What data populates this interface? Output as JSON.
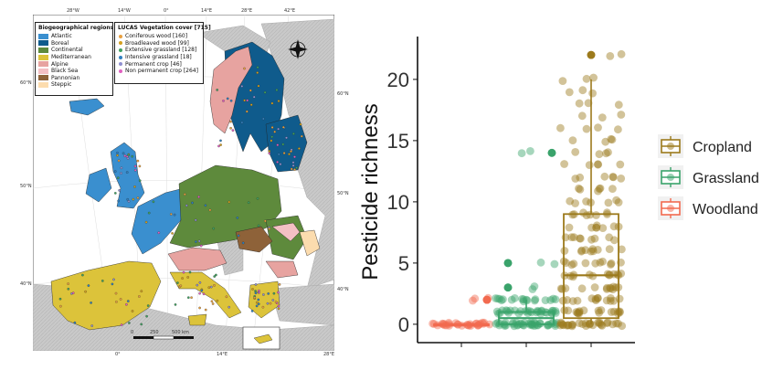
{
  "map": {
    "top_ticks": [
      "28°W",
      "14°W",
      "0°",
      "14°E",
      "28°E",
      "42°E"
    ],
    "bottom_ticks": [
      "0°",
      "14°E",
      "28°E"
    ],
    "left_ticks": [
      "60°N",
      "50°N",
      "40°N"
    ],
    "right_ticks": [
      "60°N",
      "50°N",
      "40°N"
    ],
    "biogeo_legend": {
      "title": "Biogeographical regions",
      "items": [
        {
          "label": "Atlantic",
          "color": "#3a8fcf"
        },
        {
          "label": "Boreal",
          "color": "#0f5b8c"
        },
        {
          "label": "Continental",
          "color": "#5e8a3c"
        },
        {
          "label": "Mediterranean",
          "color": "#dcc33a"
        },
        {
          "label": "Alpine",
          "color": "#e7a3a0"
        },
        {
          "label": "Black Sea",
          "color": "#f4c0c4"
        },
        {
          "label": "Pannonian",
          "color": "#8e6239"
        },
        {
          "label": "Steppic",
          "color": "#fcdcae"
        }
      ]
    },
    "vegetation_legend": {
      "title": "LUCAS Vegetation cover [715]",
      "items": [
        {
          "label": "Coniferous wood [160]",
          "color": "#e8a040"
        },
        {
          "label": "Broadleaved wood [99]",
          "color": "#d4a020"
        },
        {
          "label": "Extensive grassland [128]",
          "color": "#40a060"
        },
        {
          "label": "Intensive grassland [18]",
          "color": "#3080c0"
        },
        {
          "label": "Permanent crop [46]",
          "color": "#9090d0"
        },
        {
          "label": "Non permanent crop [264]",
          "color": "#e060c0"
        }
      ]
    },
    "scale_bar": {
      "labels": [
        "0",
        "250",
        "500 km"
      ]
    },
    "compass_icon": "north-arrow-icon"
  },
  "chart_data": {
    "type": "scatter",
    "ylabel": "Pesticide richness",
    "xlabel": "",
    "ylim": [
      -1.5,
      23.5
    ],
    "yticks": [
      0,
      5,
      10,
      15,
      20
    ],
    "legend_position": "right",
    "series": [
      {
        "name": "Woodland",
        "color": "#f26a4f",
        "box": {
          "q1": 0,
          "median": 0,
          "q3": 0,
          "whisker_low": 0,
          "whisker_high": 0
        },
        "outliers": [
          2,
          2,
          2
        ],
        "points": [
          0,
          0,
          0,
          0,
          0,
          0,
          0,
          0,
          0,
          0,
          0,
          0,
          0,
          0,
          0,
          0,
          0,
          0,
          0,
          0,
          0,
          0,
          0,
          0,
          0,
          0,
          0,
          0,
          0,
          0,
          2,
          2,
          2
        ]
      },
      {
        "name": "Grassland",
        "color": "#3aa36b",
        "box": {
          "q1": 0,
          "median": 0.5,
          "q3": 1,
          "whisker_low": 0,
          "whisker_high": 2
        },
        "outliers": [
          14,
          14,
          5,
          5,
          3,
          3
        ],
        "points": [
          0,
          0,
          0,
          0,
          0,
          0,
          0,
          0,
          0,
          0,
          0,
          0,
          0,
          0,
          0,
          0,
          0,
          0,
          0,
          0,
          0,
          0,
          0,
          0,
          0,
          0,
          0,
          0,
          0,
          0,
          0,
          0,
          0,
          0,
          0,
          0,
          0,
          0,
          0,
          0,
          1,
          1,
          1,
          1,
          1,
          1,
          1,
          1,
          1,
          1,
          1,
          1,
          1,
          1,
          1,
          1,
          1,
          1,
          1,
          1,
          1,
          1,
          1,
          1,
          1,
          1,
          1,
          1,
          1,
          1,
          2,
          2,
          2,
          2,
          2,
          2,
          2,
          2,
          2,
          2,
          2,
          2,
          2,
          2,
          2,
          2,
          2,
          2,
          3,
          3,
          5,
          5,
          14,
          14
        ]
      },
      {
        "name": "Cropland",
        "color": "#9c7a1c",
        "box": {
          "q1": 0.5,
          "median": 4,
          "q3": 9,
          "whisker_low": 0,
          "whisker_high": 20
        },
        "outliers": [
          22,
          22
        ],
        "points": [
          0,
          0,
          0,
          0,
          0,
          0,
          0,
          0,
          0,
          0,
          0,
          0,
          0,
          0,
          0,
          0,
          0,
          0,
          0,
          0,
          0,
          0,
          0,
          0,
          0,
          0,
          0,
          0,
          0,
          0,
          1,
          1,
          1,
          1,
          1,
          1,
          1,
          1,
          1,
          1,
          1,
          1,
          1,
          1,
          1,
          1,
          1,
          1,
          2,
          2,
          2,
          2,
          2,
          2,
          2,
          2,
          2,
          2,
          2,
          2,
          2,
          2,
          3,
          3,
          3,
          3,
          3,
          3,
          3,
          3,
          3,
          3,
          3,
          3,
          3,
          4,
          4,
          4,
          4,
          4,
          4,
          4,
          4,
          4,
          4,
          4,
          4,
          4,
          5,
          5,
          5,
          5,
          5,
          5,
          5,
          5,
          5,
          5,
          5,
          6,
          6,
          6,
          6,
          6,
          6,
          6,
          6,
          6,
          6,
          7,
          7,
          7,
          7,
          7,
          7,
          7,
          7,
          7,
          8,
          8,
          8,
          8,
          8,
          8,
          8,
          8,
          9,
          9,
          9,
          9,
          9,
          9,
          9,
          9,
          10,
          10,
          10,
          10,
          10,
          10,
          10,
          11,
          11,
          11,
          11,
          11,
          11,
          12,
          12,
          12,
          12,
          12,
          12,
          13,
          13,
          13,
          13,
          13,
          14,
          14,
          14,
          14,
          15,
          15,
          15,
          15,
          16,
          16,
          16,
          16,
          17,
          17,
          17,
          18,
          18,
          18,
          19,
          19,
          19,
          20,
          20,
          20,
          22,
          22
        ]
      }
    ],
    "legend": [
      {
        "label": "Cropland",
        "color": "#9c7a1c"
      },
      {
        "label": "Grassland",
        "color": "#3aa36b"
      },
      {
        "label": "Woodland",
        "color": "#f26a4f"
      }
    ]
  }
}
